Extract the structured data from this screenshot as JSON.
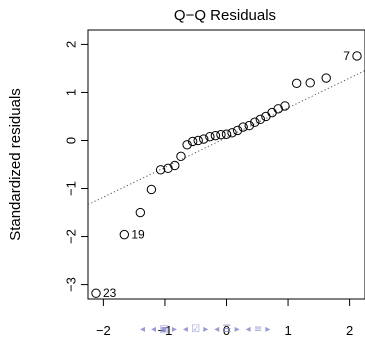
{
  "chart_data": {
    "type": "scatter",
    "title": "Q−Q Residuals",
    "xlabel": "",
    "ylabel": "Standardized residuals",
    "xlim": [
      -2.25,
      2.25
    ],
    "ylim": [
      -3.3,
      2.3
    ],
    "x_ticks": [
      -2,
      -1,
      0,
      1,
      2
    ],
    "x_tick_labels": [
      "−2",
      "−1",
      "0",
      "1",
      "2"
    ],
    "y_ticks": [
      -3,
      -2,
      -1,
      0,
      1,
      2
    ],
    "y_tick_labels": [
      "−3",
      "−2",
      "−1",
      "0",
      "1",
      "2"
    ],
    "grid": false,
    "points": [
      {
        "x": -2.12,
        "y": -3.18,
        "label": "23"
      },
      {
        "x": -1.66,
        "y": -1.96,
        "label": "19"
      },
      {
        "x": -1.4,
        "y": -1.5
      },
      {
        "x": -1.22,
        "y": -1.02
      },
      {
        "x": -1.07,
        "y": -0.61
      },
      {
        "x": -0.95,
        "y": -0.58
      },
      {
        "x": -0.84,
        "y": -0.52
      },
      {
        "x": -0.74,
        "y": -0.33
      },
      {
        "x": -0.64,
        "y": -0.09
      },
      {
        "x": -0.55,
        "y": -0.02
      },
      {
        "x": -0.46,
        "y": 0.0
      },
      {
        "x": -0.37,
        "y": 0.03
      },
      {
        "x": -0.27,
        "y": 0.08
      },
      {
        "x": -0.18,
        "y": 0.1
      },
      {
        "x": -0.09,
        "y": 0.12
      },
      {
        "x": 0.0,
        "y": 0.13
      },
      {
        "x": 0.09,
        "y": 0.16
      },
      {
        "x": 0.18,
        "y": 0.21
      },
      {
        "x": 0.27,
        "y": 0.28
      },
      {
        "x": 0.37,
        "y": 0.31
      },
      {
        "x": 0.46,
        "y": 0.38
      },
      {
        "x": 0.55,
        "y": 0.44
      },
      {
        "x": 0.64,
        "y": 0.5
      },
      {
        "x": 0.74,
        "y": 0.58
      },
      {
        "x": 0.84,
        "y": 0.66
      },
      {
        "x": 0.95,
        "y": 0.72
      },
      {
        "x": 1.14,
        "y": 1.19
      },
      {
        "x": 1.36,
        "y": 1.2
      },
      {
        "x": 1.62,
        "y": 1.3
      },
      {
        "x": 2.12,
        "y": 1.76,
        "label": "7"
      }
    ],
    "reference_line": {
      "intercept": 0.06,
      "slope": 0.62
    }
  },
  "nav": {
    "items": [
      {
        "name": "nav-first",
        "glyph": "◂"
      },
      {
        "name": "nav-frame-prev",
        "glyph": "◂ ▣ ▸"
      },
      {
        "name": "nav-section",
        "glyph": "◂ ☑ ▸"
      },
      {
        "name": "nav-subsection",
        "glyph": "◂ ☰ ▸"
      },
      {
        "name": "nav-slide",
        "glyph": "◂ ≡ ▸"
      }
    ]
  }
}
